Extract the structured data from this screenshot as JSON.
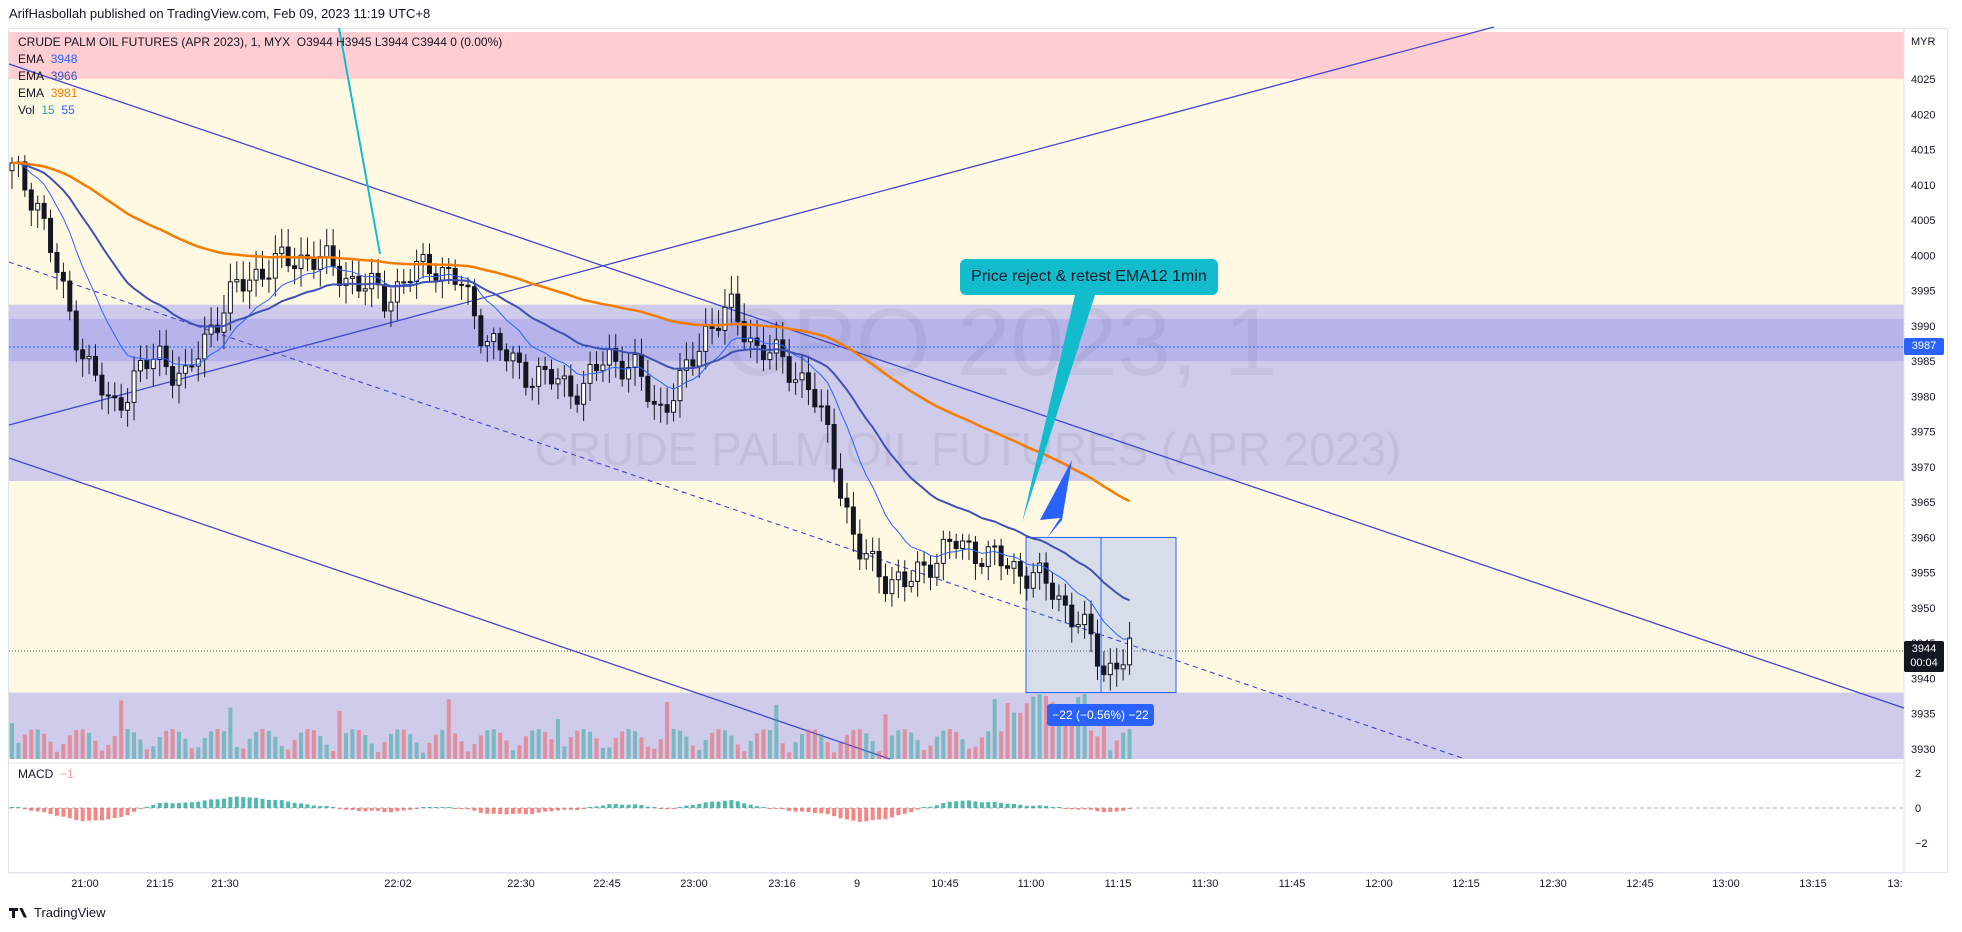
{
  "header": {
    "published_line": "ArifHasbollah published on TradingView.com, Feb 09, 2023 11:19 UTC+8"
  },
  "legend": {
    "symbol": "CRUDE PALM OIL FUTURES (APR 2023)",
    "interval": "1",
    "exchange": "MYX",
    "ohlc": "O3944  H3945  L3944  C3944  0 (0.00%)",
    "ema_rows": [
      {
        "label": "EMA",
        "value": "3948",
        "color": "#2962ff"
      },
      {
        "label": "EMA",
        "value": "3966",
        "color": "#3f51b5"
      },
      {
        "label": "EMA",
        "value": "3981",
        "color": "#f57c00"
      }
    ],
    "vol": {
      "label": "Vol",
      "v1": "15",
      "v2": "55",
      "c1": "#26a69a",
      "c2": "#2962ff"
    }
  },
  "watermark": {
    "line1": "CPO 2023, 1",
    "line2": "CRUDE PALM OIL FUTURES (APR 2023)"
  },
  "annotation": {
    "callout": "Price reject & retest EMA12 1min",
    "measure": "−22 (−0.56%) −22"
  },
  "price_axis": {
    "currency": "MYR",
    "current_price": "3944",
    "countdown": "00:04",
    "line_price": "3987"
  },
  "macd": {
    "label": "MACD",
    "value": "−1"
  },
  "footer": {
    "brand": "TradingView"
  },
  "colors": {
    "up": "#26a69a",
    "down": "#ef5350",
    "ema_fast": "#2962ff",
    "ema_mid": "#3f51b5",
    "ema_slow": "#f57c00",
    "zone": "#8c8cf5",
    "band": "#fff8e1",
    "red_band": "#ffcdd2"
  },
  "chart_data": {
    "type": "candlestick",
    "y_axis": {
      "min": 3930,
      "max": 4025,
      "ticks": [
        3930,
        3935,
        3940,
        3945,
        3950,
        3955,
        3960,
        3965,
        3970,
        3975,
        3980,
        3985,
        3990,
        3995,
        4000,
        4005,
        4010,
        4015,
        4020,
        4025
      ]
    },
    "x_axis_labels": [
      "21:00",
      "21:15",
      "21:30",
      "22:02",
      "22:30",
      "22:45",
      "23:00",
      "23:16",
      "9",
      "10:45",
      "11:00",
      "11:15",
      "11:30",
      "11:45",
      "12:00",
      "12:15",
      "12:30",
      "12:45",
      "13:00",
      "13:15",
      "13:"
    ],
    "macd_axis": [
      "2",
      "0",
      "−2"
    ],
    "zones": [
      {
        "name": "resistance-red",
        "from": 4025,
        "to": 4030
      },
      {
        "name": "demand-upper",
        "from": 3968,
        "to": 3993
      },
      {
        "name": "demand-lower",
        "from": 3930,
        "to": 3938
      }
    ],
    "horizontal_lines": [
      {
        "price": 3987,
        "style": "dotted"
      },
      {
        "price": 3944,
        "style": "dotted"
      }
    ],
    "measure": {
      "from": 3960,
      "to": 3938,
      "change": -22,
      "percent": -0.56
    },
    "closes_sample": [
      4012,
      4008,
      3995,
      3985,
      3978,
      3983,
      3986,
      3982,
      3990,
      3995,
      3998,
      3999,
      4000,
      3998,
      3996,
      3994,
      3997,
      3999,
      3996,
      3989,
      3985,
      3983,
      3982,
      3981,
      3986,
      3984,
      3978,
      3982,
      3990,
      3992,
      3987,
      3985,
      3982,
      3973,
      3958,
      3955,
      3953,
      3957,
      3959,
      3958,
      3956,
      3955,
      3952,
      3948,
      3941,
      3944
    ]
  }
}
